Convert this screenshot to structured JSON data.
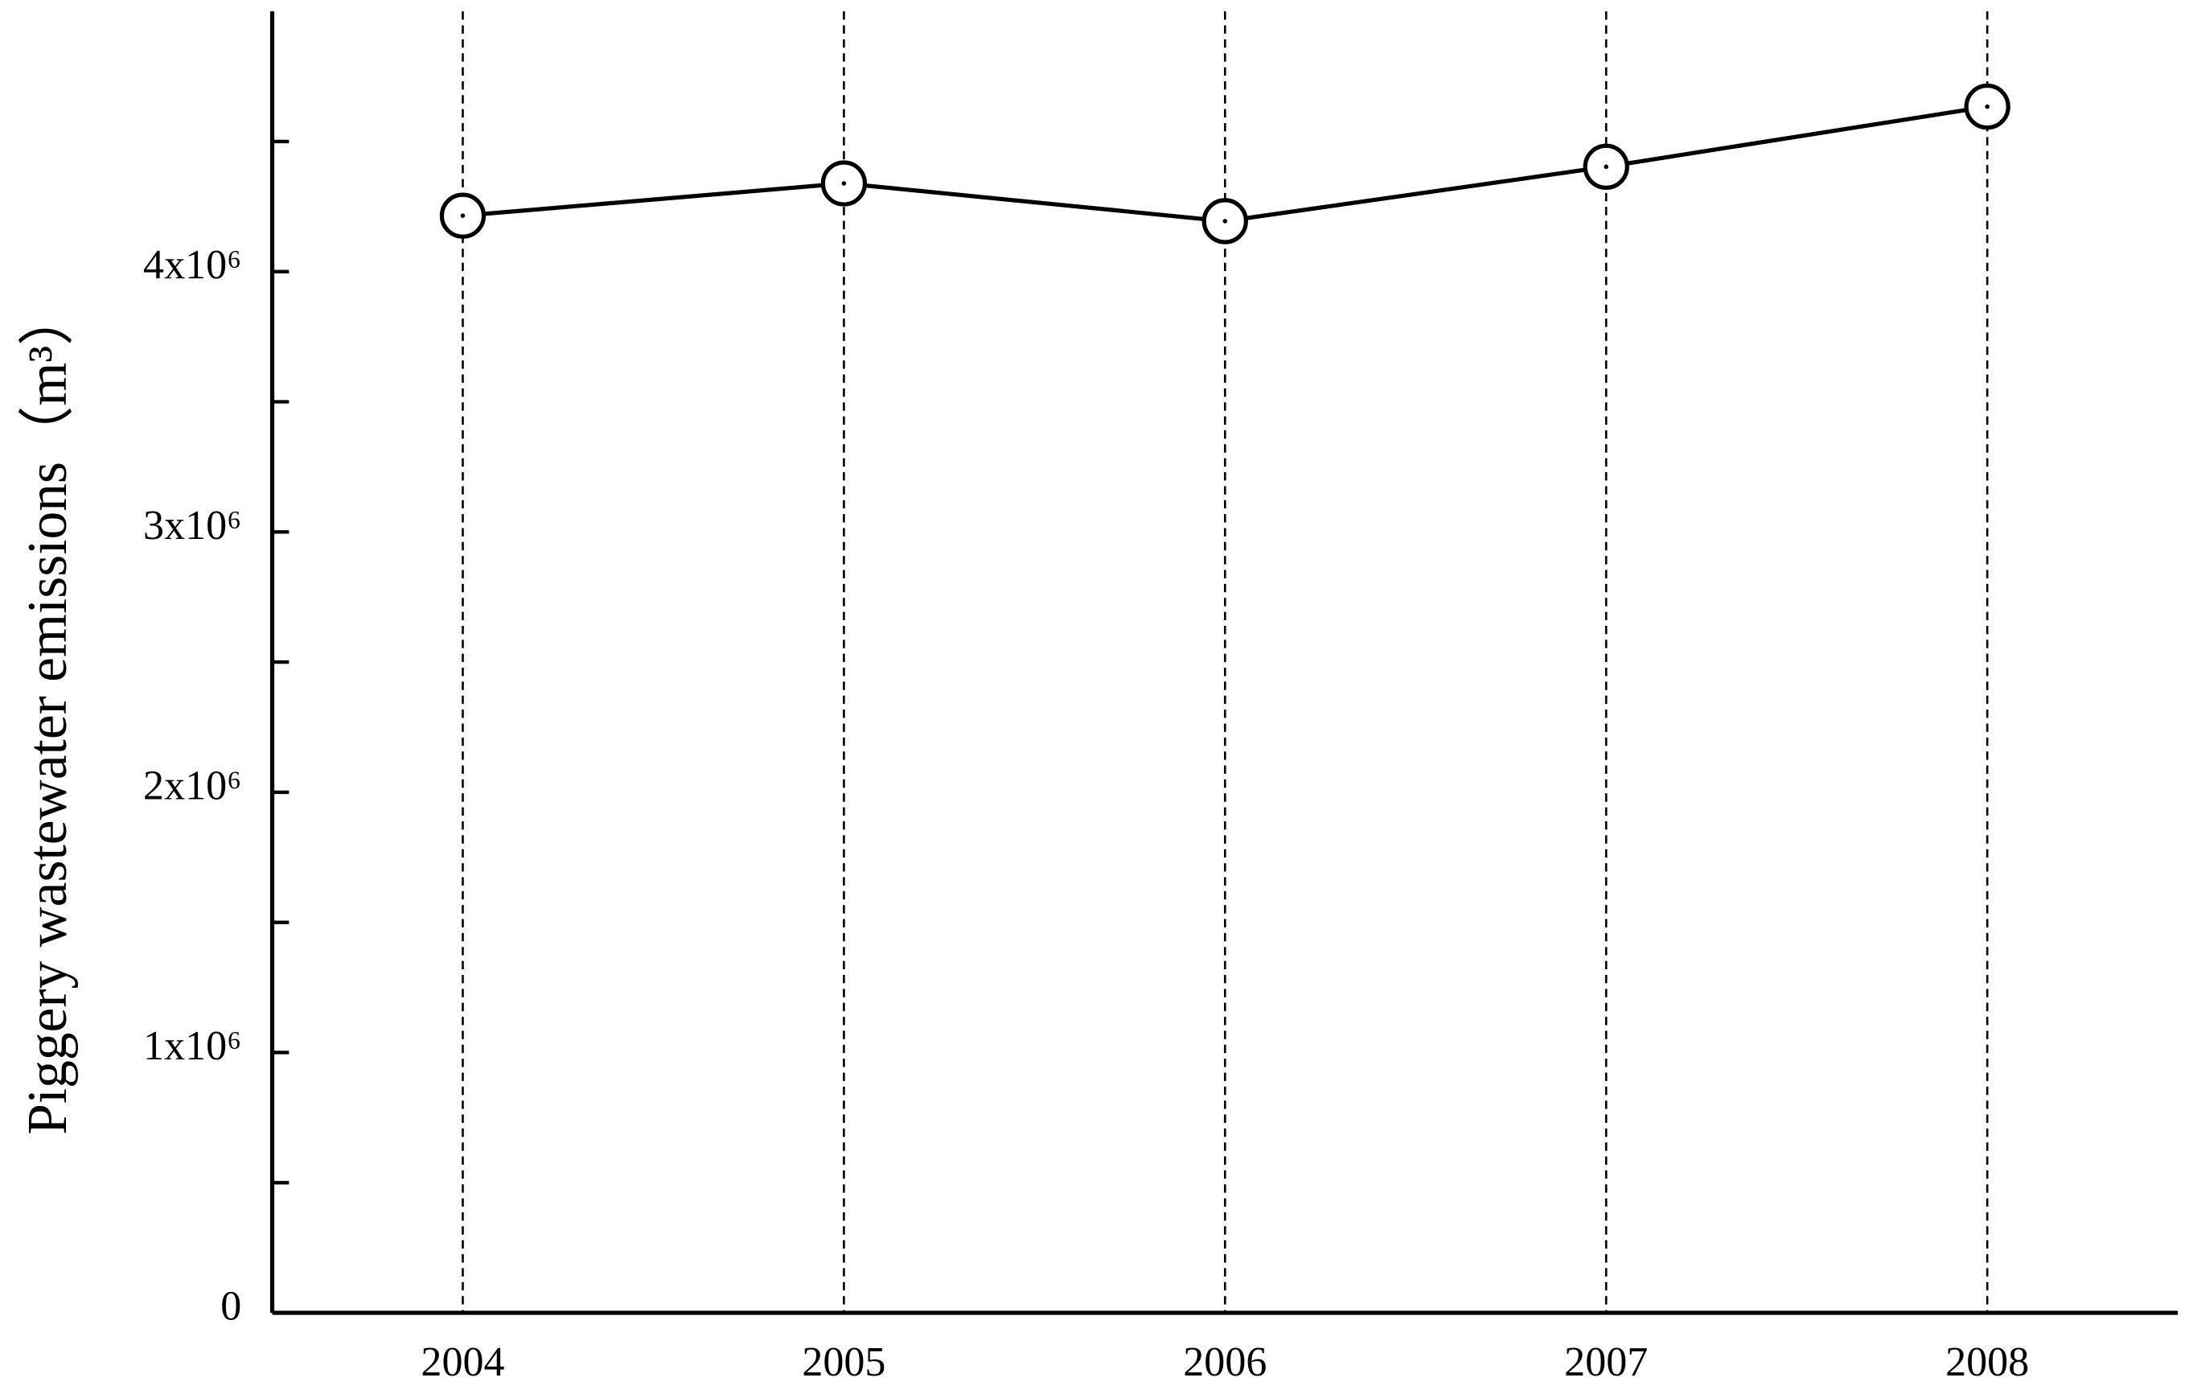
{
  "chart_data": {
    "type": "line",
    "y_label": "Piggery wastewater emissions（m³）",
    "categories": [
      "2004",
      "2005",
      "2006",
      "2007",
      "2008"
    ],
    "values": [
      4215000,
      4339000,
      4194000,
      4403000,
      4634000
    ],
    "color": "#000000",
    "ylim": [
      0,
      5000000
    ],
    "yticks": [
      0,
      {
        "value": 1000000,
        "label": "1x10⁶"
      },
      {
        "value": 2000000,
        "label": "2x10⁶"
      },
      {
        "value": 3000000,
        "label": "3x10⁶"
      },
      {
        "value": 4000000,
        "label": "4x10⁶"
      }
    ],
    "yminorticks": [
      500000,
      1500000,
      2500000,
      3500000,
      4500000
    ],
    "x_grid": true
  }
}
